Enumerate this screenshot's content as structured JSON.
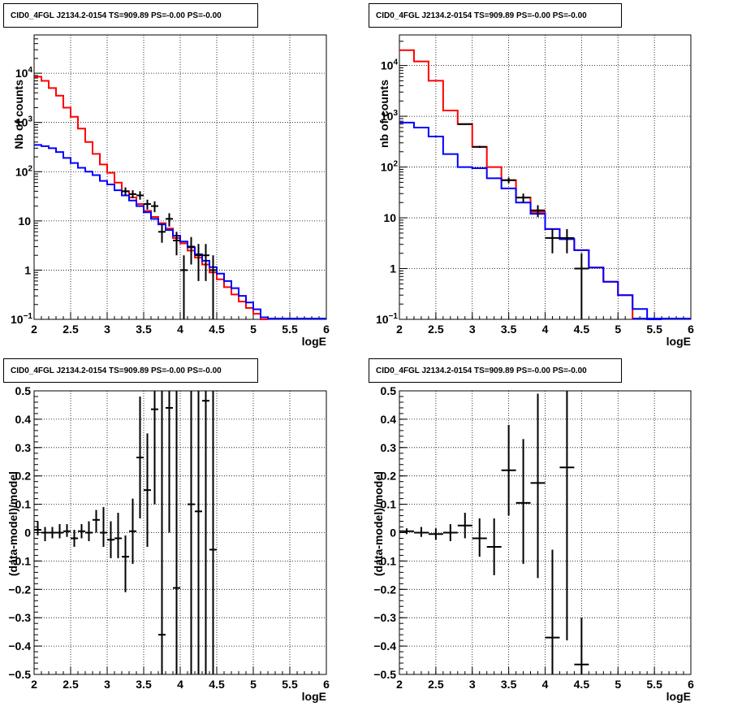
{
  "chart_data": [
    {
      "id": "p0",
      "type": "line",
      "title": "CID0_4FGL J2134.2-0154 TS=909.89 PS=-0.00 PS=-0.00",
      "xlabel": "logE",
      "ylabel": "Nb of counts",
      "log_y": true,
      "xlim": [
        2,
        6
      ],
      "ylim": [
        0.1,
        60000
      ],
      "grid": true,
      "x_ticks": [
        "2",
        "2.5",
        "3",
        "3.5",
        "4",
        "4.5",
        "5",
        "5.5",
        "6"
      ],
      "y_ticks": [
        {
          "v": 0.1,
          "base": "10",
          "exp": "−1"
        },
        {
          "v": 1,
          "label": "1"
        },
        {
          "v": 10,
          "label": "10"
        },
        {
          "v": 100,
          "base": "10",
          "exp": "2"
        },
        {
          "v": 1000,
          "base": "10",
          "exp": "3"
        },
        {
          "v": 10000,
          "base": "10",
          "exp": "4"
        }
      ],
      "bin_edges": [
        2.0,
        2.1,
        2.2,
        2.3,
        2.4,
        2.5,
        2.6,
        2.7,
        2.8,
        2.9,
        3.0,
        3.1,
        3.2,
        3.3,
        3.4,
        3.5,
        3.6,
        3.7,
        3.8,
        3.9,
        4.0,
        4.1,
        4.2,
        4.3,
        4.4,
        4.5,
        4.6,
        4.7,
        4.8,
        4.9,
        5.0,
        5.1,
        5.2,
        5.3,
        5.4,
        5.5,
        5.6,
        5.7,
        5.8,
        5.9,
        6.0
      ],
      "series": [
        {
          "color": "#ff0000",
          "values": [
            8500,
            7000,
            5000,
            3500,
            2000,
            1300,
            750,
            400,
            230,
            140,
            95,
            60,
            40,
            30,
            22,
            16,
            12,
            9,
            7,
            4.5,
            3.5,
            2.5,
            1.8,
            1.3,
            0.9,
            0.65,
            0.45,
            0.32,
            0.23,
            0.17,
            0.13,
            0.1,
            null,
            null,
            null,
            null,
            null,
            null,
            null,
            null
          ]
        },
        {
          "color": "#0000ff",
          "values": [
            350,
            330,
            300,
            250,
            190,
            150,
            120,
            100,
            85,
            65,
            55,
            42,
            33,
            26,
            20,
            15,
            11,
            8.5,
            6.5,
            5,
            3.8,
            2.9,
            2.1,
            1.55,
            1.15,
            0.85,
            0.6,
            0.43,
            0.3,
            0.22,
            0.16,
            0.11,
            null,
            null,
            null,
            null,
            null,
            null,
            null,
            null
          ]
        }
      ],
      "points": [
        {
          "x": 3.25,
          "y": 40,
          "xerr": 0.05,
          "lo": 33,
          "hi": 48
        },
        {
          "x": 3.35,
          "y": 35,
          "xerr": 0.05,
          "lo": 29,
          "hi": 42
        },
        {
          "x": 3.45,
          "y": 33,
          "xerr": 0.05,
          "lo": 27,
          "hi": 40
        },
        {
          "x": 3.55,
          "y": 22,
          "xerr": 0.05,
          "lo": 17,
          "hi": 27
        },
        {
          "x": 3.65,
          "y": 20,
          "xerr": 0.05,
          "lo": 15,
          "hi": 25
        },
        {
          "x": 3.75,
          "y": 6,
          "xerr": 0.05,
          "lo": 3.6,
          "hi": 8.6
        },
        {
          "x": 3.85,
          "y": 11,
          "xerr": 0.05,
          "lo": 7.7,
          "hi": 14.3
        },
        {
          "x": 3.95,
          "y": 4,
          "xerr": 0.05,
          "lo": 2,
          "hi": 6
        },
        {
          "x": 4.05,
          "y": 1,
          "xerr": 0.05,
          "lo": 0.1,
          "hi": 2
        },
        {
          "x": 4.15,
          "y": 3,
          "xerr": 0.05,
          "lo": 1.3,
          "hi": 4.7
        },
        {
          "x": 4.25,
          "y": 2,
          "xerr": 0.05,
          "lo": 0.6,
          "hi": 3.4
        },
        {
          "x": 4.35,
          "y": 2,
          "xerr": 0.05,
          "lo": 0.6,
          "hi": 3.4
        },
        {
          "x": 4.45,
          "y": 1,
          "xerr": 0.05,
          "lo": 0.1,
          "hi": 2
        }
      ]
    },
    {
      "id": "p1",
      "type": "line",
      "title": "CID0_4FGL J2134.2-0154 TS=909.89 PS=-0.00 PS=-0.00",
      "xlabel": "logE",
      "ylabel": "nb of counts",
      "log_y": true,
      "xlim": [
        2,
        6
      ],
      "ylim": [
        0.1,
        40000
      ],
      "grid": true,
      "x_ticks": [
        "2",
        "2.5",
        "3",
        "3.5",
        "4",
        "4.5",
        "5",
        "5.5",
        "6"
      ],
      "y_ticks": [
        {
          "v": 0.1,
          "base": "10",
          "exp": "−1"
        },
        {
          "v": 1,
          "label": "1"
        },
        {
          "v": 10,
          "label": "10"
        },
        {
          "v": 100,
          "base": "10",
          "exp": "2"
        },
        {
          "v": 1000,
          "base": "10",
          "exp": "3"
        },
        {
          "v": 10000,
          "base": "10",
          "exp": "4"
        }
      ],
      "bin_edges": [
        2.0,
        2.2,
        2.4,
        2.6,
        2.8,
        3.0,
        3.2,
        3.4,
        3.6,
        3.8,
        4.0,
        4.2,
        4.4,
        4.6,
        4.8,
        5.0,
        5.2,
        5.4,
        5.6,
        5.8,
        6.0
      ],
      "series": [
        {
          "color": "#ff0000",
          "values": [
            20000,
            12000,
            5000,
            1300,
            700,
            250,
            100,
            55,
            25,
            13,
            6,
            3.8,
            2.3,
            1.05,
            0.55,
            0.3,
            null,
            null,
            null,
            null
          ]
        },
        {
          "color": "#0000ff",
          "values": [
            750,
            600,
            400,
            180,
            100,
            95,
            60,
            38,
            20,
            12,
            6,
            3.8,
            2.3,
            1.05,
            0.55,
            0.3,
            0.16,
            0.1,
            null,
            null
          ]
        }
      ],
      "points": [
        {
          "x": 2.9,
          "y": 700,
          "xerr": 0.1,
          "lo": 680,
          "hi": 720
        },
        {
          "x": 3.1,
          "y": 250,
          "xerr": 0.1,
          "lo": 238,
          "hi": 262
        },
        {
          "x": 3.5,
          "y": 55,
          "xerr": 0.1,
          "lo": 48,
          "hi": 62
        },
        {
          "x": 3.7,
          "y": 25,
          "xerr": 0.1,
          "lo": 20,
          "hi": 30
        },
        {
          "x": 3.9,
          "y": 14,
          "xerr": 0.1,
          "lo": 10.3,
          "hi": 17.7
        },
        {
          "x": 4.1,
          "y": 4,
          "xerr": 0.1,
          "lo": 2,
          "hi": 6
        },
        {
          "x": 4.3,
          "y": 4,
          "xerr": 0.1,
          "lo": 2,
          "hi": 6
        },
        {
          "x": 4.5,
          "y": 1,
          "xerr": 0.1,
          "lo": 0.1,
          "hi": 2
        }
      ]
    },
    {
      "id": "p2",
      "type": "scatter",
      "title": "CID0_4FGL J2134.2-0154 TS=909.89 PS=-0.00 PS=-0.00",
      "xlabel": "logE",
      "ylabel": "(data-model)/model",
      "log_y": false,
      "xlim": [
        2,
        6
      ],
      "ylim": [
        -0.5,
        0.5
      ],
      "grid": true,
      "x_ticks": [
        "2",
        "2.5",
        "3",
        "3.5",
        "4",
        "4.5",
        "5",
        "5.5",
        "6"
      ],
      "y_ticks": [
        {
          "v": -0.5,
          "label": "−0.5"
        },
        {
          "v": -0.4,
          "label": "−0.4"
        },
        {
          "v": -0.3,
          "label": "−0.3"
        },
        {
          "v": -0.2,
          "label": "−0.2"
        },
        {
          "v": -0.1,
          "label": "−0.1"
        },
        {
          "v": 0,
          "label": "0"
        },
        {
          "v": 0.1,
          "label": "0.1"
        },
        {
          "v": 0.2,
          "label": "0.2"
        },
        {
          "v": 0.3,
          "label": "0.3"
        },
        {
          "v": 0.4,
          "label": "0.4"
        },
        {
          "v": 0.5,
          "label": "0.5"
        }
      ],
      "points": [
        {
          "x": 2.05,
          "y": 0.01,
          "xerr": 0.05,
          "lo": -0.01,
          "hi": 0.04
        },
        {
          "x": 2.15,
          "y": 0.0,
          "xerr": 0.05,
          "lo": -0.03,
          "hi": 0.02
        },
        {
          "x": 2.25,
          "y": 0.0,
          "xerr": 0.05,
          "lo": -0.02,
          "hi": 0.02
        },
        {
          "x": 2.35,
          "y": 0.0,
          "xerr": 0.05,
          "lo": -0.02,
          "hi": 0.03
        },
        {
          "x": 2.45,
          "y": 0.005,
          "xerr": 0.05,
          "lo": -0.015,
          "hi": 0.03
        },
        {
          "x": 2.55,
          "y": -0.02,
          "xerr": 0.05,
          "lo": -0.05,
          "hi": 0.01
        },
        {
          "x": 2.65,
          "y": 0.005,
          "xerr": 0.05,
          "lo": -0.02,
          "hi": 0.03
        },
        {
          "x": 2.75,
          "y": 0.0,
          "xerr": 0.05,
          "lo": -0.03,
          "hi": 0.04
        },
        {
          "x": 2.85,
          "y": 0.045,
          "xerr": 0.05,
          "lo": 0.0,
          "hi": 0.08
        },
        {
          "x": 2.95,
          "y": 0.0,
          "xerr": 0.05,
          "lo": -0.05,
          "hi": 0.09
        },
        {
          "x": 3.05,
          "y": -0.025,
          "xerr": 0.05,
          "lo": -0.09,
          "hi": 0.04
        },
        {
          "x": 3.15,
          "y": -0.02,
          "xerr": 0.05,
          "lo": -0.09,
          "hi": 0.07
        },
        {
          "x": 3.25,
          "y": -0.085,
          "xerr": 0.05,
          "lo": -0.21,
          "hi": -0.01
        },
        {
          "x": 3.35,
          "y": 0.005,
          "xerr": 0.05,
          "lo": -0.11,
          "hi": 0.12
        },
        {
          "x": 3.45,
          "y": 0.265,
          "xerr": 0.05,
          "lo": 0.05,
          "hi": 0.48
        },
        {
          "x": 3.55,
          "y": 0.15,
          "xerr": 0.05,
          "lo": -0.05,
          "hi": 0.35
        },
        {
          "x": 3.65,
          "y": 0.435,
          "xerr": 0.05,
          "lo": 0.1,
          "hi": 0.5
        },
        {
          "x": 3.75,
          "y": -0.36,
          "xerr": 0.05,
          "lo": -0.5,
          "hi": 0.5
        },
        {
          "x": 3.85,
          "y": 0.44,
          "xerr": 0.05,
          "lo": 0.0,
          "hi": 0.5
        },
        {
          "x": 3.95,
          "y": -0.195,
          "xerr": 0.05,
          "lo": -0.5,
          "hi": 0.5
        },
        {
          "x": 4.15,
          "y": 0.1,
          "xerr": 0.05,
          "lo": -0.5,
          "hi": 0.5
        },
        {
          "x": 4.25,
          "y": 0.075,
          "xerr": 0.05,
          "lo": -0.5,
          "hi": 0.5
        },
        {
          "x": 4.35,
          "y": 0.465,
          "xerr": 0.05,
          "lo": -0.5,
          "hi": 0.5
        },
        {
          "x": 4.45,
          "y": -0.06,
          "xerr": 0.05,
          "lo": -0.5,
          "hi": 0.5
        }
      ]
    },
    {
      "id": "p3",
      "type": "scatter",
      "title": "CID0_4FGL J2134.2-0154 TS=909.89 PS=-0.00 PS=-0.00",
      "xlabel": "logE",
      "ylabel": "(data-model)/model",
      "log_y": false,
      "xlim": [
        2,
        6
      ],
      "ylim": [
        -0.5,
        0.5
      ],
      "grid": true,
      "x_ticks": [
        "2",
        "2.5",
        "3",
        "3.5",
        "4",
        "4.5",
        "5",
        "5.5",
        "6"
      ],
      "y_ticks": [
        {
          "v": -0.5,
          "label": "−0.5"
        },
        {
          "v": -0.4,
          "label": "−0.4"
        },
        {
          "v": -0.3,
          "label": "−0.3"
        },
        {
          "v": -0.2,
          "label": "−0.2"
        },
        {
          "v": -0.1,
          "label": "−0.1"
        },
        {
          "v": 0,
          "label": "0"
        },
        {
          "v": 0.1,
          "label": "0.1"
        },
        {
          "v": 0.2,
          "label": "0.2"
        },
        {
          "v": 0.3,
          "label": "0.3"
        },
        {
          "v": 0.4,
          "label": "0.4"
        },
        {
          "v": 0.5,
          "label": "0.5"
        }
      ],
      "points": [
        {
          "x": 2.1,
          "y": 0.005,
          "xerr": 0.1,
          "lo": -0.005,
          "hi": 0.015
        },
        {
          "x": 2.3,
          "y": 0.0,
          "xerr": 0.1,
          "lo": -0.015,
          "hi": 0.02
        },
        {
          "x": 2.5,
          "y": -0.005,
          "xerr": 0.1,
          "lo": -0.025,
          "hi": 0.015
        },
        {
          "x": 2.7,
          "y": 0.0,
          "xerr": 0.1,
          "lo": -0.03,
          "hi": 0.03
        },
        {
          "x": 2.9,
          "y": 0.025,
          "xerr": 0.1,
          "lo": -0.02,
          "hi": 0.07
        },
        {
          "x": 3.1,
          "y": -0.02,
          "xerr": 0.1,
          "lo": -0.085,
          "hi": 0.05
        },
        {
          "x": 3.3,
          "y": -0.05,
          "xerr": 0.1,
          "lo": -0.15,
          "hi": 0.05
        },
        {
          "x": 3.5,
          "y": 0.22,
          "xerr": 0.1,
          "lo": 0.06,
          "hi": 0.38
        },
        {
          "x": 3.7,
          "y": 0.105,
          "xerr": 0.1,
          "lo": -0.11,
          "hi": 0.33
        },
        {
          "x": 3.9,
          "y": 0.175,
          "xerr": 0.1,
          "lo": -0.16,
          "hi": 0.49
        },
        {
          "x": 4.1,
          "y": -0.37,
          "xerr": 0.1,
          "lo": -0.5,
          "hi": -0.06
        },
        {
          "x": 4.3,
          "y": 0.23,
          "xerr": 0.1,
          "lo": -0.38,
          "hi": 0.5
        },
        {
          "x": 4.5,
          "y": -0.465,
          "xerr": 0.1,
          "lo": -0.5,
          "hi": -0.3
        }
      ]
    }
  ]
}
